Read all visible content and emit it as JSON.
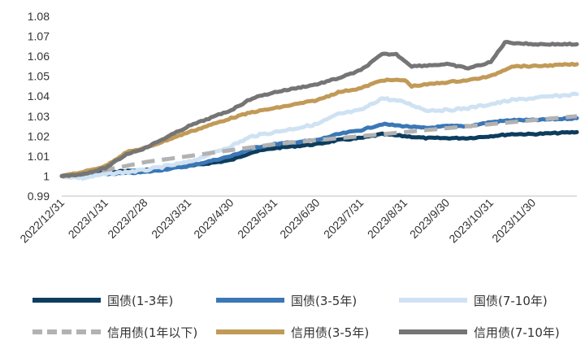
{
  "chart_data": {
    "type": "line",
    "title": "",
    "xlabel": "",
    "ylabel": "",
    "ylim": [
      0.99,
      1.08
    ],
    "yticks": [
      "0.99",
      "1",
      "1.01",
      "1.02",
      "1.03",
      "1.04",
      "1.05",
      "1.06",
      "1.07",
      "1.08"
    ],
    "xticks": [
      "2022/12/31",
      "2023/1/31",
      "2023/2/28",
      "2023/3/31",
      "2023/4/30",
      "2023/5/31",
      "2023/6/30",
      "2023/7/31",
      "2023/8/31",
      "2023/9/30",
      "2023/10/31",
      "2023/11/30"
    ],
    "x_range": [
      "2022/12/31",
      "2023/12/31"
    ],
    "grid": false,
    "legend_position": "bottom",
    "series": [
      {
        "name": "国债(1-3年)",
        "color": "#0d3d5e",
        "dash": false,
        "points": [
          [
            "2022/12/31",
            1.0
          ],
          [
            "2023/1/15",
            1.001
          ],
          [
            "2023/1/31",
            1.002
          ],
          [
            "2023/2/28",
            1.003
          ],
          [
            "2023/3/31",
            1.005
          ],
          [
            "2023/4/30",
            1.008
          ],
          [
            "2023/5/15",
            1.012
          ],
          [
            "2023/5/31",
            1.014
          ],
          [
            "2023/6/30",
            1.016
          ],
          [
            "2023/7/15",
            1.018
          ],
          [
            "2023/7/31",
            1.019
          ],
          [
            "2023/8/15",
            1.021
          ],
          [
            "2023/8/31",
            1.02
          ],
          [
            "2023/9/15",
            1.019
          ],
          [
            "2023/9/30",
            1.019
          ],
          [
            "2023/10/15",
            1.019
          ],
          [
            "2023/10/31",
            1.02
          ],
          [
            "2023/11/15",
            1.021
          ],
          [
            "2023/11/30",
            1.021
          ],
          [
            "2023/12/31",
            1.022
          ]
        ]
      },
      {
        "name": "国债(3-5年)",
        "color": "#3b77b6",
        "dash": false,
        "points": [
          [
            "2022/12/31",
            1.0
          ],
          [
            "2023/1/15",
            1.0
          ],
          [
            "2023/1/31",
            1.001
          ],
          [
            "2023/2/28",
            1.002
          ],
          [
            "2023/3/31",
            1.005
          ],
          [
            "2023/4/30",
            1.01
          ],
          [
            "2023/5/15",
            1.014
          ],
          [
            "2023/5/31",
            1.016
          ],
          [
            "2023/6/30",
            1.018
          ],
          [
            "2023/7/15",
            1.021
          ],
          [
            "2023/7/31",
            1.023
          ],
          [
            "2023/8/15",
            1.026
          ],
          [
            "2023/8/31",
            1.025
          ],
          [
            "2023/9/15",
            1.024
          ],
          [
            "2023/9/30",
            1.025
          ],
          [
            "2023/10/15",
            1.025
          ],
          [
            "2023/10/31",
            1.027
          ],
          [
            "2023/11/15",
            1.028
          ],
          [
            "2023/11/30",
            1.028
          ],
          [
            "2023/12/31",
            1.029
          ]
        ]
      },
      {
        "name": "国债(7-10年)",
        "color": "#cfe2f3",
        "dash": false,
        "points": [
          [
            "2022/12/31",
            1.0
          ],
          [
            "2023/1/15",
            0.999
          ],
          [
            "2023/1/31",
            1.001
          ],
          [
            "2023/2/28",
            1.003
          ],
          [
            "2023/3/31",
            1.007
          ],
          [
            "2023/4/30",
            1.015
          ],
          [
            "2023/5/15",
            1.02
          ],
          [
            "2023/5/31",
            1.022
          ],
          [
            "2023/6/30",
            1.026
          ],
          [
            "2023/7/15",
            1.031
          ],
          [
            "2023/7/31",
            1.033
          ],
          [
            "2023/8/15",
            1.039
          ],
          [
            "2023/8/31",
            1.037
          ],
          [
            "2023/9/15",
            1.033
          ],
          [
            "2023/9/30",
            1.033
          ],
          [
            "2023/10/15",
            1.034
          ],
          [
            "2023/10/31",
            1.036
          ],
          [
            "2023/11/15",
            1.038
          ],
          [
            "2023/11/30",
            1.039
          ],
          [
            "2023/12/31",
            1.041
          ]
        ]
      },
      {
        "name": "信用债(1年以下)",
        "color": "#b2b2b2",
        "dash": true,
        "points": [
          [
            "2022/12/31",
            1.0
          ],
          [
            "2023/1/15",
            1.002
          ],
          [
            "2023/1/31",
            1.003
          ],
          [
            "2023/2/28",
            1.007
          ],
          [
            "2023/3/31",
            1.01
          ],
          [
            "2023/4/30",
            1.013
          ],
          [
            "2023/5/31",
            1.016
          ],
          [
            "2023/6/30",
            1.018
          ],
          [
            "2023/7/31",
            1.02
          ],
          [
            "2023/8/31",
            1.022
          ],
          [
            "2023/9/30",
            1.024
          ],
          [
            "2023/10/31",
            1.026
          ],
          [
            "2023/11/30",
            1.028
          ],
          [
            "2023/12/31",
            1.03
          ]
        ]
      },
      {
        "name": "信用债(3-5年)",
        "color": "#c19a57",
        "dash": false,
        "points": [
          [
            "2022/12/31",
            1.0
          ],
          [
            "2023/1/15",
            1.002
          ],
          [
            "2023/1/31",
            1.005
          ],
          [
            "2023/2/15",
            1.012
          ],
          [
            "2023/2/28",
            1.014
          ],
          [
            "2023/3/31",
            1.022
          ],
          [
            "2023/4/30",
            1.029
          ],
          [
            "2023/5/15",
            1.032
          ],
          [
            "2023/5/31",
            1.034
          ],
          [
            "2023/6/15",
            1.036
          ],
          [
            "2023/6/30",
            1.038
          ],
          [
            "2023/7/15",
            1.042
          ],
          [
            "2023/7/31",
            1.044
          ],
          [
            "2023/8/15",
            1.048
          ],
          [
            "2023/8/31",
            1.048
          ],
          [
            "2023/9/5",
            1.045
          ],
          [
            "2023/9/30",
            1.047
          ],
          [
            "2023/10/15",
            1.048
          ],
          [
            "2023/10/31",
            1.05
          ],
          [
            "2023/11/15",
            1.055
          ],
          [
            "2023/11/30",
            1.055
          ],
          [
            "2023/12/31",
            1.056
          ]
        ]
      },
      {
        "name": "信用债(7-10年)",
        "color": "#757575",
        "dash": false,
        "points": [
          [
            "2022/12/31",
            1.0
          ],
          [
            "2023/1/15",
            1.001
          ],
          [
            "2023/1/31",
            1.004
          ],
          [
            "2023/2/15",
            1.011
          ],
          [
            "2023/2/28",
            1.014
          ],
          [
            "2023/3/31",
            1.025
          ],
          [
            "2023/4/30",
            1.033
          ],
          [
            "2023/5/15",
            1.039
          ],
          [
            "2023/5/31",
            1.042
          ],
          [
            "2023/6/15",
            1.044
          ],
          [
            "2023/6/30",
            1.046
          ],
          [
            "2023/7/15",
            1.049
          ],
          [
            "2023/7/31",
            1.053
          ],
          [
            "2023/8/15",
            1.061
          ],
          [
            "2023/8/25",
            1.061
          ],
          [
            "2023/9/5",
            1.055
          ],
          [
            "2023/9/30",
            1.056
          ],
          [
            "2023/10/15",
            1.054
          ],
          [
            "2023/10/31",
            1.057
          ],
          [
            "2023/11/10",
            1.067
          ],
          [
            "2023/11/30",
            1.066
          ],
          [
            "2023/12/31",
            1.066
          ]
        ]
      }
    ]
  },
  "legend": [
    {
      "label": "国债(1-3年)",
      "color": "#0d3d5e",
      "dash": false
    },
    {
      "label": "国债(3-5年)",
      "color": "#3b77b6",
      "dash": false
    },
    {
      "label": "国债(7-10年)",
      "color": "#cfe2f3",
      "dash": false
    },
    {
      "label": "信用债(1年以下)",
      "color": "#b2b2b2",
      "dash": true
    },
    {
      "label": "信用债(3-5年)",
      "color": "#c19a57",
      "dash": false
    },
    {
      "label": "信用债(7-10年)",
      "color": "#757575",
      "dash": false
    }
  ]
}
